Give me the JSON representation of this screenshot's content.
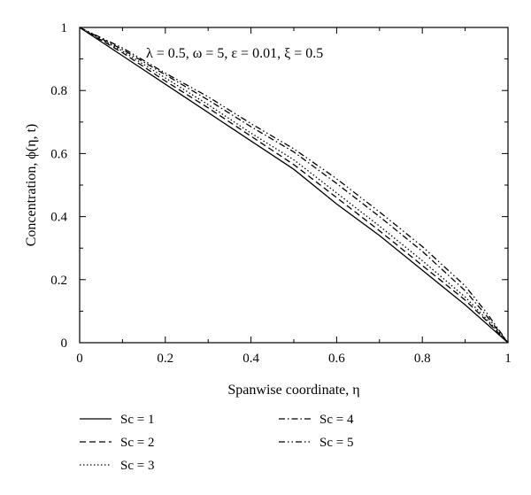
{
  "chart_data": {
    "type": "line",
    "xlabel": "Spanwise coordinate, η",
    "ylabel": "Concentration, ϕ(η, t)",
    "annotation": "λ = 0.5, ω = 5, ε = 0.01, ξ = 0.5",
    "xlim": [
      0,
      1
    ],
    "ylim": [
      0,
      1
    ],
    "xticks": [
      "0",
      "0.2",
      "0.4",
      "0.6",
      "0.8",
      "1"
    ],
    "yticks": [
      "0",
      "0.2",
      "0.4",
      "0.6",
      "0.8",
      "1"
    ],
    "grid": false,
    "legend_position": "below",
    "series": [
      {
        "name": "Sc = 1",
        "style": "solid",
        "x": [
          0,
          0.1,
          0.2,
          0.3,
          0.4,
          0.5,
          0.6,
          0.7,
          0.8,
          0.9,
          0.95,
          1.0
        ],
        "y": [
          1,
          0.91,
          0.82,
          0.73,
          0.64,
          0.55,
          0.44,
          0.34,
          0.23,
          0.12,
          0.06,
          0
        ]
      },
      {
        "name": "Sc = 2",
        "style": "dashed",
        "x": [
          0,
          0.1,
          0.2,
          0.3,
          0.4,
          0.5,
          0.6,
          0.7,
          0.8,
          0.9,
          0.95,
          1.0
        ],
        "y": [
          1,
          0.92,
          0.83,
          0.745,
          0.655,
          0.565,
          0.46,
          0.355,
          0.245,
          0.135,
          0.07,
          0
        ]
      },
      {
        "name": "Sc = 3",
        "style": "dotted",
        "x": [
          0,
          0.1,
          0.2,
          0.3,
          0.4,
          0.5,
          0.6,
          0.7,
          0.8,
          0.9,
          0.95,
          1.0
        ],
        "y": [
          1,
          0.925,
          0.84,
          0.755,
          0.665,
          0.58,
          0.475,
          0.37,
          0.26,
          0.145,
          0.075,
          0
        ]
      },
      {
        "name": "Sc = 4",
        "style": "dashdot",
        "x": [
          0,
          0.1,
          0.2,
          0.3,
          0.4,
          0.5,
          0.6,
          0.7,
          0.8,
          0.9,
          0.95,
          1.0
        ],
        "y": [
          1,
          0.93,
          0.85,
          0.77,
          0.685,
          0.605,
          0.505,
          0.4,
          0.29,
          0.165,
          0.085,
          0
        ]
      },
      {
        "name": "Sc = 5",
        "style": "dashdotdot",
        "x": [
          0,
          0.1,
          0.2,
          0.3,
          0.4,
          0.5,
          0.6,
          0.7,
          0.8,
          0.9,
          0.95,
          1.0
        ],
        "y": [
          1,
          0.935,
          0.855,
          0.78,
          0.695,
          0.615,
          0.52,
          0.415,
          0.305,
          0.18,
          0.095,
          0
        ]
      }
    ]
  }
}
